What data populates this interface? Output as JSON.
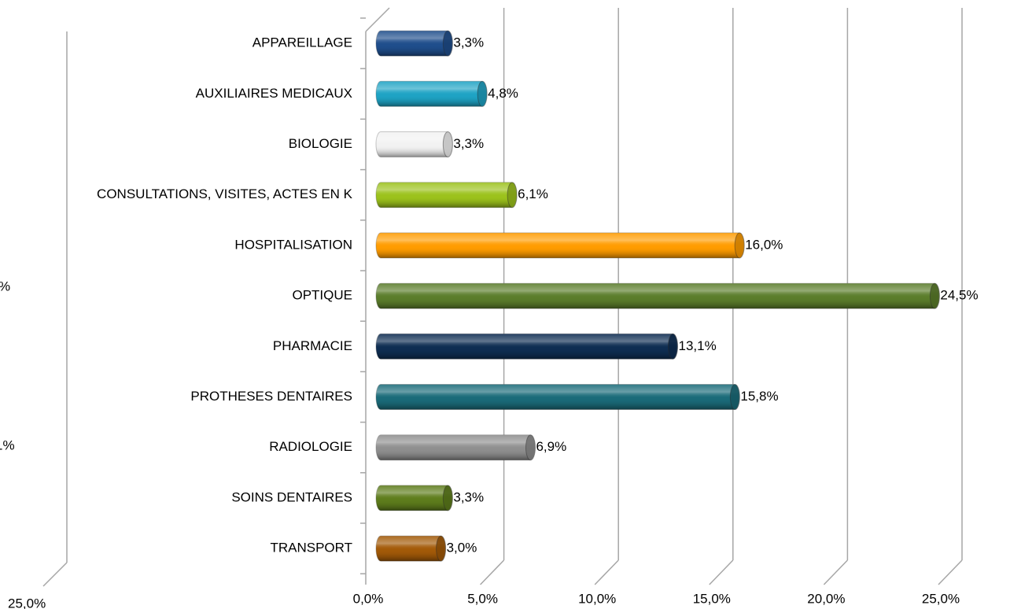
{
  "chart_data": {
    "type": "bar",
    "orientation": "horizontal",
    "categories": [
      "APPAREILLAGE",
      "AUXILIAIRES MEDICAUX",
      "BIOLOGIE",
      "CONSULTATIONS, VISITES, ACTES EN K",
      "HOSPITALISATION",
      "OPTIQUE",
      "PHARMACIE",
      "PROTHESES DENTAIRES",
      "RADIOLOGIE",
      "SOINS DENTAIRES",
      "TRANSPORT"
    ],
    "values": [
      3.3,
      4.8,
      3.3,
      6.1,
      16.0,
      24.5,
      13.1,
      15.8,
      6.9,
      3.3,
      3.0
    ],
    "value_labels": [
      "3,3%",
      "4,8%",
      "3,3%",
      "6,1%",
      "16,0%",
      "24,5%",
      "13,1%",
      "15,8%",
      "6,9%",
      "3,3%",
      "3,0%"
    ],
    "colors": [
      "#1f4e8c",
      "#1ea3c4",
      "#f2f2f2",
      "#9cc21c",
      "#ff9c00",
      "#5b7d2b",
      "#0e2d52",
      "#1a6b79",
      "#8f8f8f",
      "#5e7d1c",
      "#a35a08"
    ],
    "xlim": [
      0,
      25
    ],
    "xticks": [
      {
        "value": 0,
        "label": "0,0%"
      },
      {
        "value": 5,
        "label": "5,0%"
      },
      {
        "value": 10,
        "label": "10,0%"
      },
      {
        "value": 15,
        "label": "15,0%"
      },
      {
        "value": 20,
        "label": "20,0%"
      },
      {
        "value": 25,
        "label": "25,0%"
      }
    ],
    "grid": true
  },
  "clipped_chart": {
    "texts": [
      "%",
      "1%",
      "25,0%"
    ]
  }
}
